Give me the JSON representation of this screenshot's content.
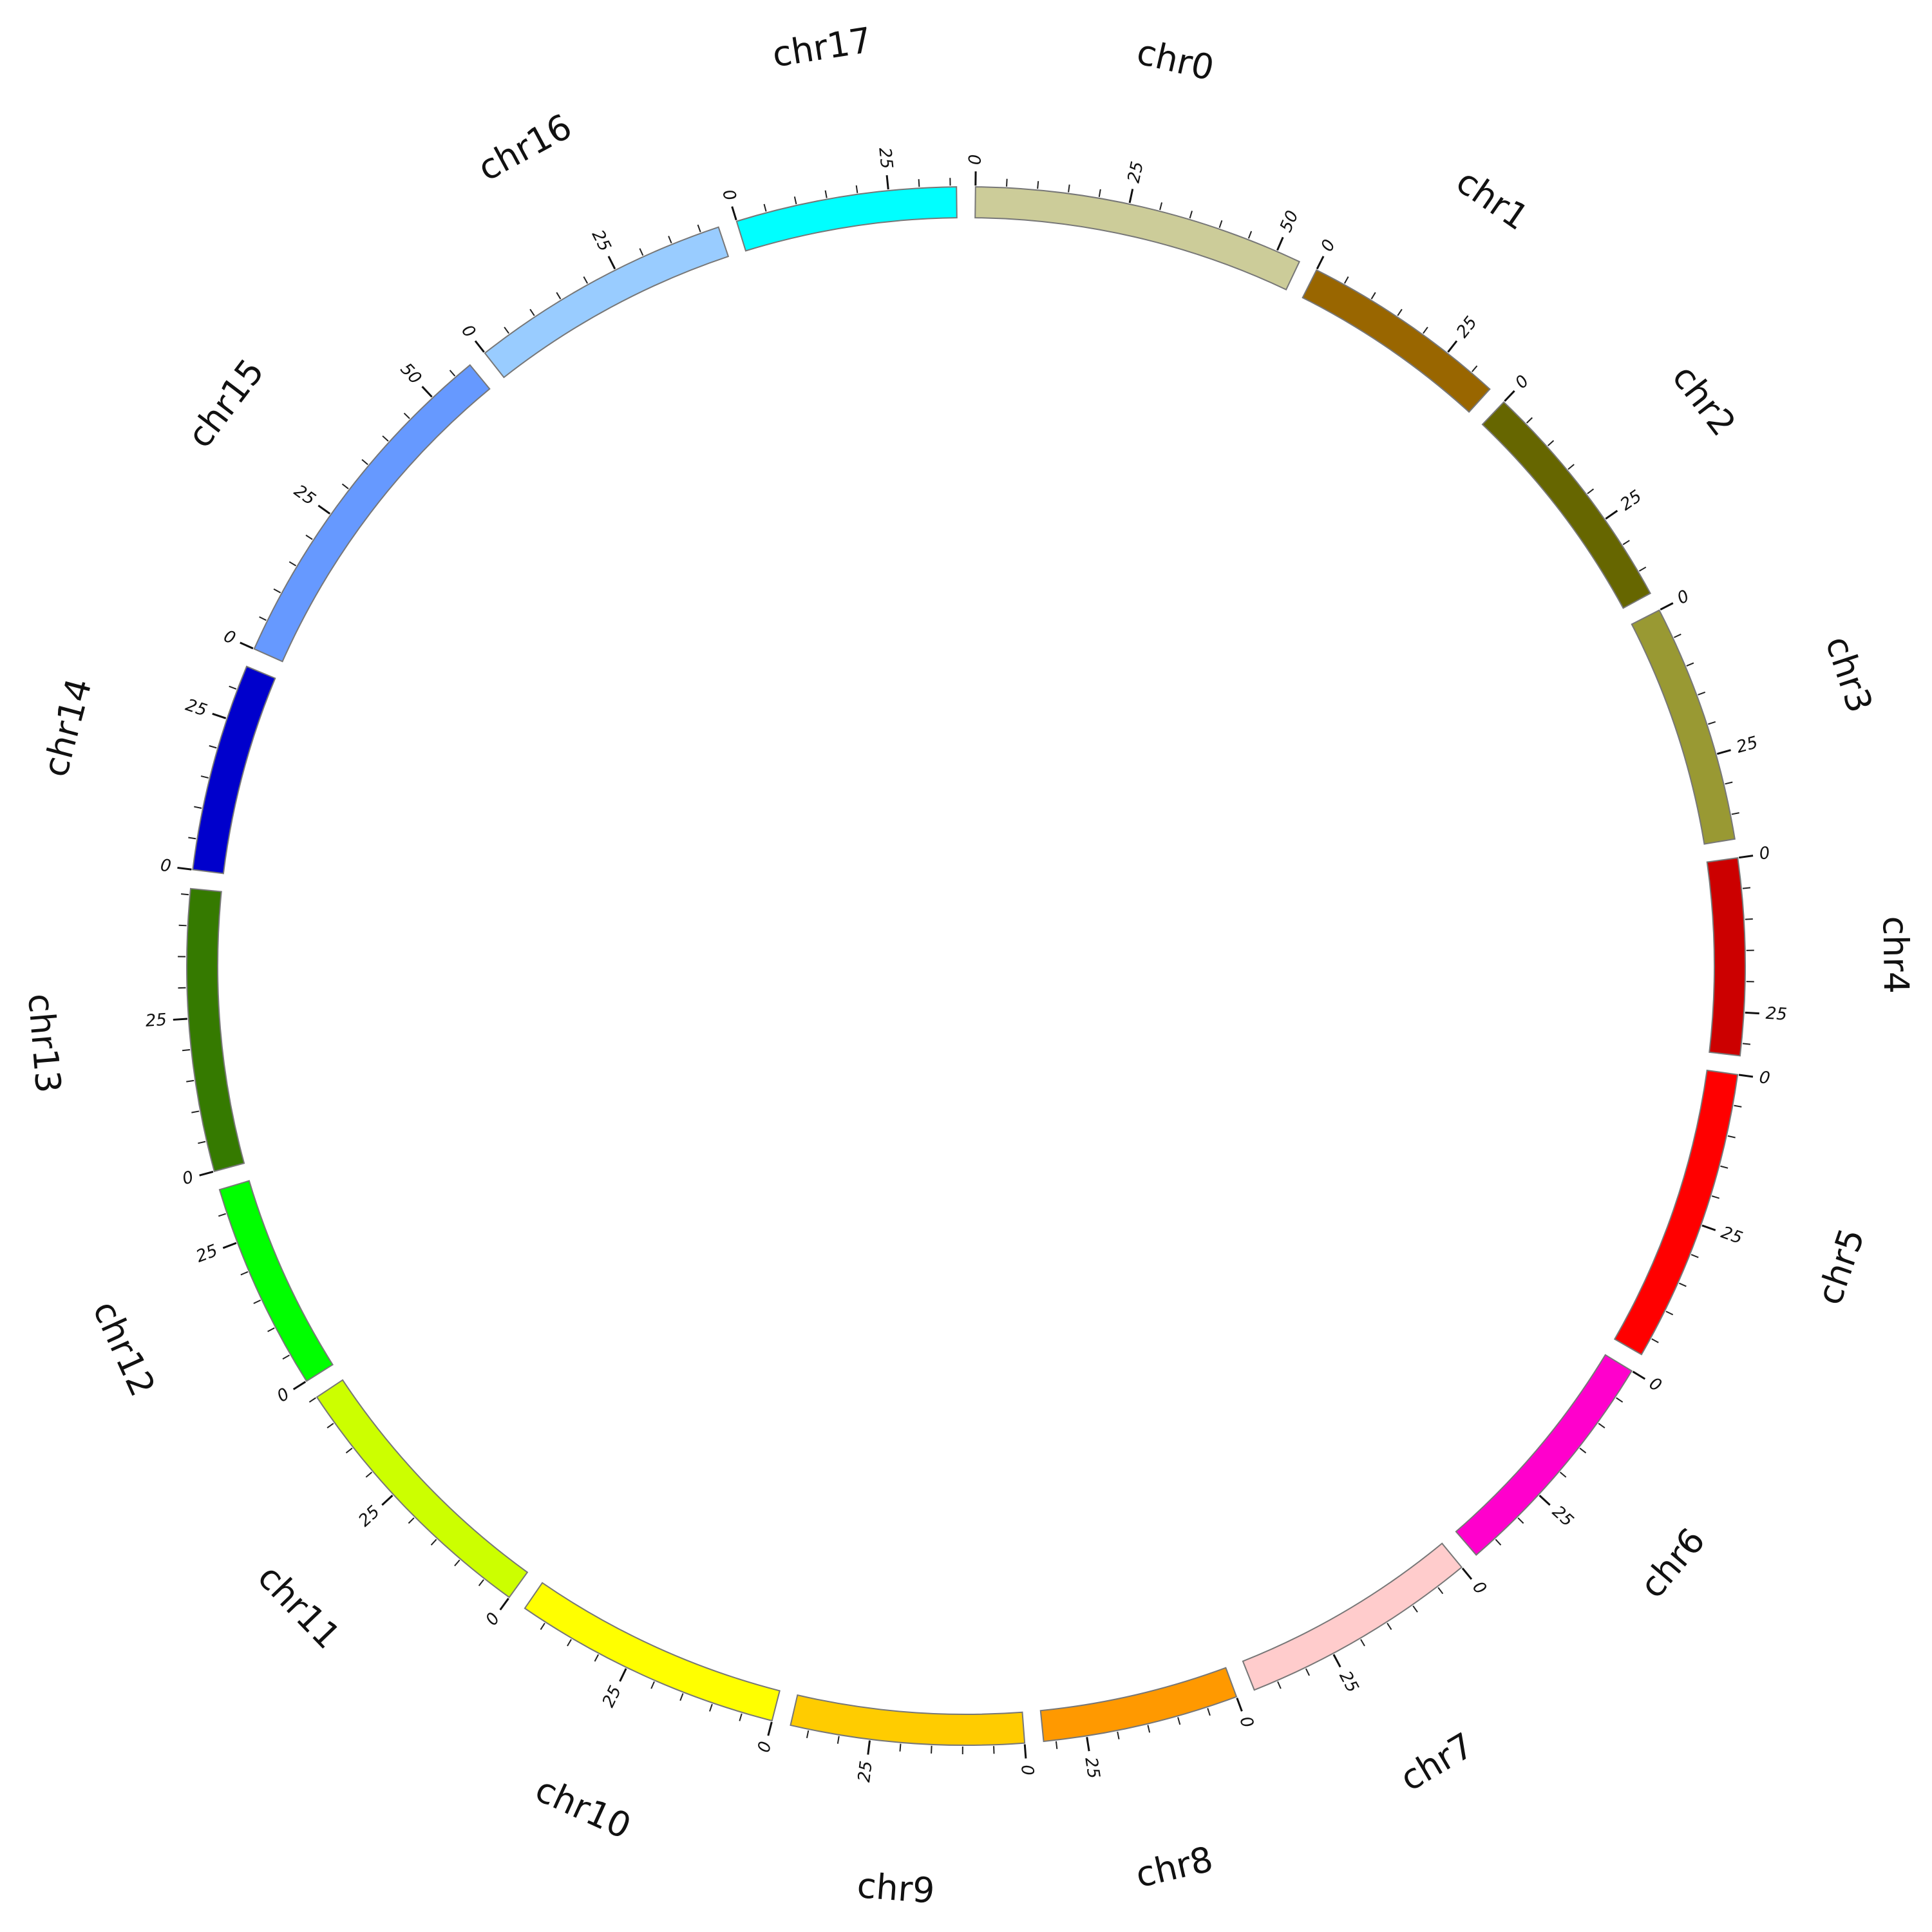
{
  "chart_data": {
    "type": "ideogram",
    "categories": [
      "chr0",
      "chr1",
      "chr2",
      "chr3",
      "chr4",
      "chr5",
      "chr6",
      "chr7",
      "chr8",
      "chr9",
      "chr10",
      "chr11",
      "chr12",
      "chr13",
      "chr14",
      "chr15",
      "chr16",
      "chr17"
    ],
    "values": [
      54,
      34,
      39,
      39,
      32,
      48,
      39,
      39,
      32,
      38,
      44,
      45,
      34,
      46,
      34,
      58,
      43,
      36
    ],
    "colors": [
      "#cccc99",
      "#996600",
      "#666600",
      "#999933",
      "#cc0000",
      "#ff0000",
      "#ff00cc",
      "#ffcccc",
      "#ff9900",
      "#ffcc00",
      "#ffff00",
      "#ccff00",
      "#00ff00",
      "#357a00",
      "#0000cc",
      "#6699ff",
      "#99ccff",
      "#00ffff"
    ],
    "ticks": [
      0,
      25,
      50
    ],
    "minor_tick_step": 5
  }
}
